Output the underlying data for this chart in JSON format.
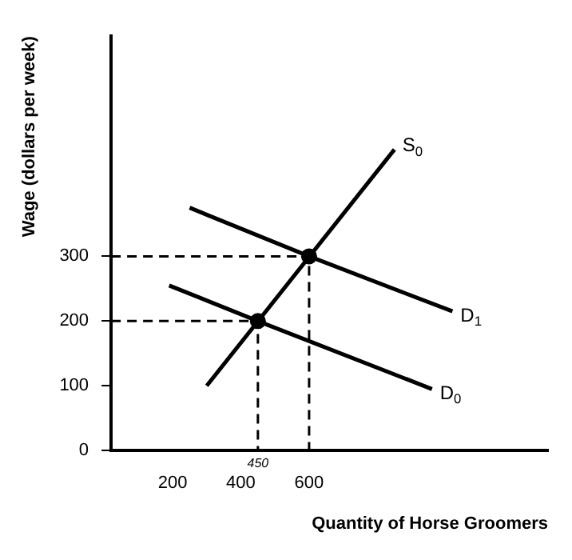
{
  "chart_data": {
    "type": "line",
    "xlabel": "Quantity of Horse Groomers",
    "ylabel": "Wage (dollars per week)",
    "xlim": [
      20,
      1300
    ],
    "ylim": [
      0,
      640
    ],
    "xticks": [
      200,
      400,
      600
    ],
    "yticks": [
      0,
      100,
      200,
      300
    ],
    "grid": false,
    "legend": false,
    "marker": "none",
    "line_style": "solid",
    "series": [
      {
        "name": "S$_{0}$",
        "color": "#000000",
        "x": [
          300,
          850
        ],
        "values": [
          100,
          465
        ]
      },
      {
        "name": "D$_{1}$",
        "color": "#000000",
        "x": [
          250,
          600,
          1020
        ],
        "values": [
          375,
          300,
          215
        ]
      },
      {
        "name": "D$_{0}$",
        "color": "#000000",
        "x": [
          190,
          450,
          960
        ],
        "values": [
          255,
          200,
          95
        ]
      },
      {
        "color": "#000000",
        "line_style": "dashed",
        "x": [
          20,
          600,
          600
        ],
        "values": [
          300,
          300,
          0
        ]
      },
      {
        "color": "#000000",
        "line_style": "dashed",
        "x": [
          20,
          450,
          450
        ],
        "values": [
          200,
          200,
          0
        ]
      },
      {
        "type": "scatter",
        "marker": "circle",
        "color": "#000000",
        "x": [
          450,
          600
        ],
        "values": [
          200,
          300
        ]
      }
    ],
    "annotations": [
      {
        "text": "450",
        "x": 450,
        "y": 0
      }
    ]
  }
}
